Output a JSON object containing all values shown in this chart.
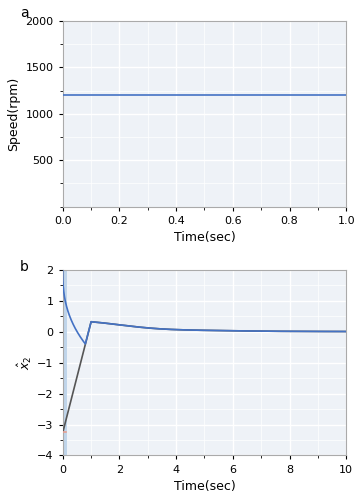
{
  "subplot_a": {
    "label": "a",
    "ylabel": "Speed(rpm)",
    "xlabel": "Time(sec)",
    "xlim": [
      0,
      1
    ],
    "ylim": [
      0,
      2000
    ],
    "yticks": [
      500,
      1000,
      1500,
      2000
    ],
    "xticks": [
      0,
      0.2,
      0.4,
      0.6,
      0.8,
      1.0
    ],
    "speed_value": 1200,
    "line_color": "#4472c4",
    "line_width": 1.2
  },
  "subplot_b": {
    "label": "b",
    "ylabel": "$\\hat{x}_2$",
    "xlabel": "Time(sec)",
    "xlim": [
      0,
      10
    ],
    "ylim": [
      -4,
      2
    ],
    "yticks": [
      -4,
      -3,
      -2,
      -1,
      0,
      1,
      2
    ],
    "xticks": [
      0,
      2,
      4,
      6,
      8,
      10
    ],
    "line_color_blue": "#4472c4",
    "line_color_gray": "#555555",
    "line_color_orange": "#e8a090",
    "line_width": 1.2,
    "peak_value": 0.32,
    "init_value": -3.2
  },
  "background_color": "#eef2f7",
  "grid_color": "#ffffff",
  "spine_color": "#aaaaaa",
  "label_fontsize": 9,
  "tick_fontsize": 8,
  "tag_fontsize": 10
}
